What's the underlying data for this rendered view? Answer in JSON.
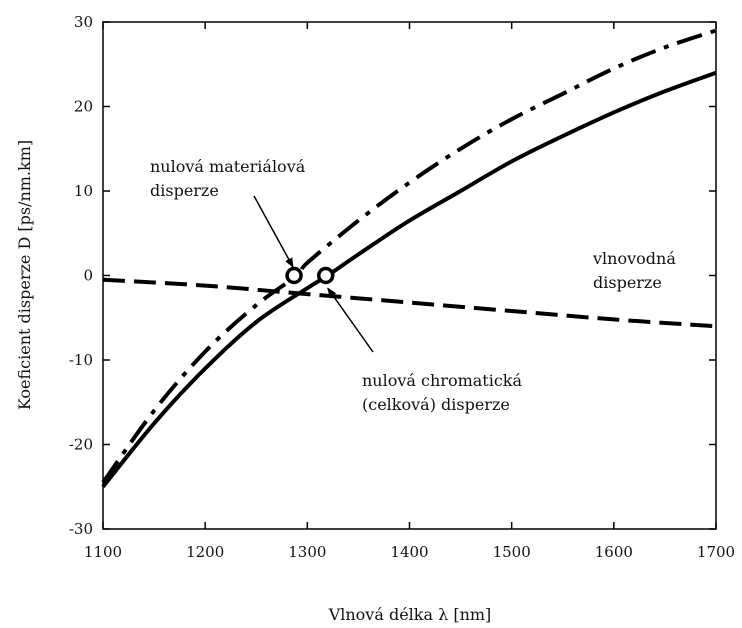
{
  "chart_data": {
    "type": "line",
    "title": "",
    "xlabel": "Vlnová délka λ [nm]",
    "ylabel": "Koeficient disperze D [ps/nm.km]",
    "xlim": [
      1100,
      1700
    ],
    "ylim": [
      -30,
      30
    ],
    "x_ticks": [
      "1100",
      "1200",
      "1300",
      "1400",
      "1500",
      "1600",
      "1700"
    ],
    "y_ticks": [
      "30",
      "20",
      "10",
      "0",
      "-10",
      "-20",
      "-30"
    ],
    "grid": false,
    "legend": "none",
    "series": [
      {
        "style": "dash-dot",
        "x": [
          1100,
          1150,
          1200,
          1250,
          1290,
          1300,
          1350,
          1400,
          1450,
          1500,
          1550,
          1600,
          1650,
          1700
        ],
        "y": [
          -24.5,
          -16,
          -9,
          -3.5,
          0,
          1.5,
          6.5,
          11,
          15,
          18.5,
          21.5,
          24.5,
          27,
          29
        ]
      },
      {
        "style": "solid",
        "x": [
          1100,
          1150,
          1200,
          1250,
          1300,
          1320,
          1350,
          1400,
          1450,
          1500,
          1550,
          1600,
          1650,
          1700
        ],
        "y": [
          -25,
          -17.5,
          -11,
          -5.5,
          -1.5,
          0,
          2.5,
          6.5,
          10,
          13.5,
          16.5,
          19.3,
          21.8,
          24
        ]
      },
      {
        "style": "dashed",
        "x": [
          1100,
          1200,
          1300,
          1400,
          1500,
          1600,
          1700
        ],
        "y": [
          -0.5,
          -1.2,
          -2.2,
          -3.2,
          -4.2,
          -5.2,
          -6
        ]
      }
    ],
    "markers": [
      {
        "x": 1287,
        "y": 0
      },
      {
        "x": 1318,
        "y": 0
      }
    ],
    "annotations": [
      {
        "lines": [
          "nulová materiálová",
          "disperze"
        ],
        "arrow_to": [
          1286,
          1
        ]
      },
      {
        "lines": [
          "vlnovodná",
          "disperze"
        ]
      },
      {
        "lines": [
          "nulová chromatická",
          "(celková) disperze"
        ],
        "arrow_to": [
          1320,
          -1.5
        ]
      }
    ]
  }
}
